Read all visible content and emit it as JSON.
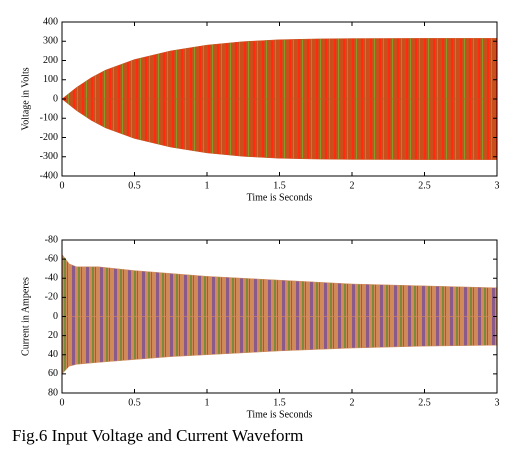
{
  "chart_data": [
    {
      "type": "area",
      "ylabel": "Voltage in Volts",
      "xlabel": "Time is Seconds",
      "x": [
        0,
        0.1,
        0.2,
        0.3,
        0.5,
        0.75,
        1,
        1.25,
        1.5,
        1.75,
        2,
        2.5,
        3
      ],
      "series": [
        {
          "color": "#c8501c",
          "values": [
            0,
            60,
            110,
            150,
            205,
            250,
            280,
            298,
            308,
            312,
            314,
            315,
            315
          ]
        },
        {
          "color": "#c8501c",
          "values": [
            0,
            -60,
            -110,
            -150,
            -205,
            -250,
            -280,
            -298,
            -308,
            -312,
            -314,
            -315,
            -315
          ]
        }
      ],
      "xlim": [
        0,
        3
      ],
      "xticks": [
        0,
        0.5,
        1,
        1.5,
        2,
        2.5,
        3
      ],
      "ylim": [
        -400,
        400
      ],
      "yticks": [
        -400,
        -300,
        -200,
        -100,
        0,
        100,
        200,
        300,
        400
      ]
    },
    {
      "type": "area",
      "ylabel": "Current in Amperes",
      "xlabel": "Time is Seconds",
      "x": [
        0,
        0.05,
        0.1,
        0.25,
        0.5,
        0.75,
        1,
        1.5,
        2,
        2.5,
        3
      ],
      "series": [
        {
          "color": "#d08a5a",
          "values": [
            -65,
            -55,
            -52,
            -52,
            -48,
            -45,
            -42,
            -38,
            -34,
            -32,
            -30
          ]
        },
        {
          "color": "#d08a5a",
          "values": [
            60,
            52,
            50,
            48,
            45,
            42,
            40,
            36,
            33,
            31,
            30
          ]
        }
      ],
      "xlim": [
        0,
        3
      ],
      "xticks": [
        0,
        0.5,
        1,
        1.5,
        2,
        2.5,
        3
      ],
      "ylim": [
        80,
        -80
      ],
      "yticks": [
        -80,
        -60,
        -40,
        -20,
        0,
        20,
        40,
        60,
        80
      ]
    }
  ],
  "caption": "Fig.6 Input Voltage and Current Waveform"
}
